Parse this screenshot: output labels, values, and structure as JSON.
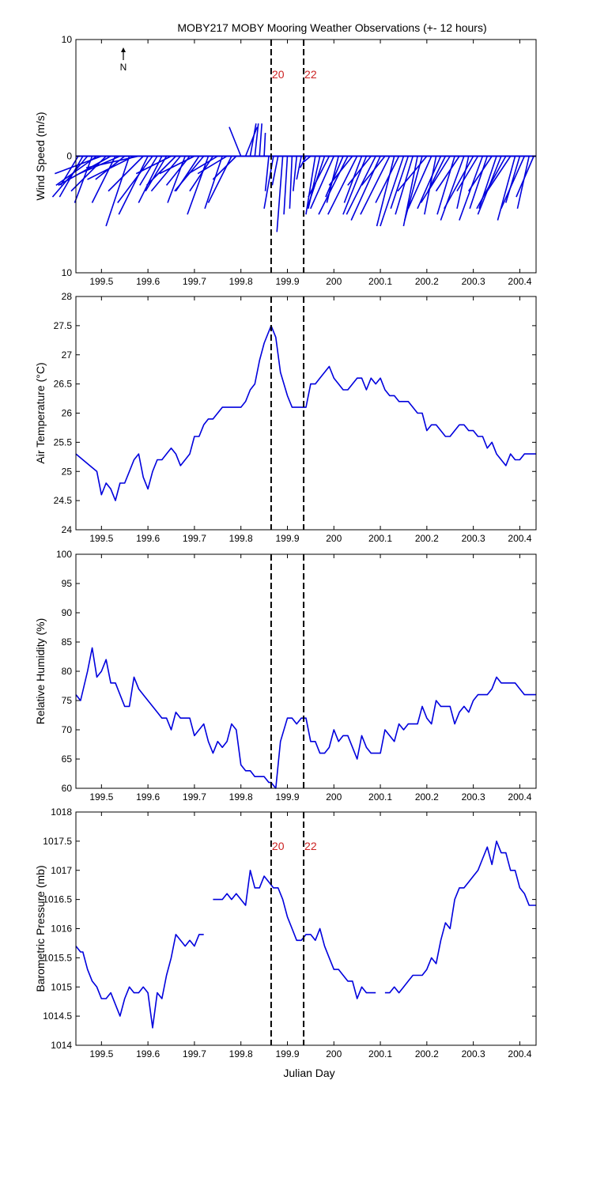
{
  "title": "MOBY217 MOBY Mooring Weather Observations (+- 12 hours)",
  "xlabel": "Julian Day",
  "compass_label": "N",
  "colors": {
    "series": "#0000dd",
    "axes": "#000000",
    "annotation": "#cc2222",
    "marker_line": "#000000"
  },
  "markers": [
    {
      "x": 199.865,
      "label": "20"
    },
    {
      "x": 199.935,
      "label": "22"
    }
  ],
  "xlim": [
    199.445,
    200.435
  ],
  "xticks": [
    199.5,
    199.6,
    199.7,
    199.8,
    199.9,
    200,
    200.1,
    200.2,
    200.3,
    200.4
  ],
  "xtick_labels": [
    "199.5",
    "199.6",
    "199.7",
    "199.8",
    "199.9",
    "200",
    "200.1",
    "200.2",
    "200.3",
    "200.4"
  ],
  "chart_data": [
    {
      "type": "line",
      "subtype": "wind-stick",
      "ylabel": "Wind Speed (m/s)",
      "ylim": [
        -10,
        10
      ],
      "yticks": [
        10,
        0,
        -10
      ],
      "ytick_labels": [
        "10",
        "0",
        "10"
      ],
      "stick_origin_y": 0,
      "x": [
        199.45,
        199.46,
        199.47,
        199.48,
        199.49,
        199.5,
        199.51,
        199.52,
        199.53,
        199.54,
        199.55,
        199.56,
        199.57,
        199.58,
        199.59,
        199.6,
        199.61,
        199.62,
        199.63,
        199.64,
        199.65,
        199.66,
        199.67,
        199.68,
        199.69,
        199.7,
        199.71,
        199.72,
        199.73,
        199.74,
        199.75,
        199.76,
        199.77,
        199.78,
        199.79,
        199.8,
        199.81,
        199.82,
        199.83,
        199.84,
        199.85,
        199.86,
        199.87,
        199.88,
        199.89,
        199.9,
        199.91,
        199.92,
        199.93,
        199.94,
        199.95,
        199.96,
        199.97,
        199.98,
        199.99,
        200.0,
        200.01,
        200.02,
        200.03,
        200.04,
        200.05,
        200.06,
        200.07,
        200.08,
        200.09,
        200.1,
        200.11,
        200.12,
        200.13,
        200.14,
        200.15,
        200.16,
        200.17,
        200.18,
        200.19,
        200.2,
        200.21,
        200.22,
        200.23,
        200.24,
        200.25,
        200.26,
        200.27,
        200.28,
        200.29,
        200.3,
        200.31,
        200.32,
        200.33,
        200.34,
        200.35,
        200.36,
        200.37,
        200.38,
        200.39,
        200.4,
        200.41,
        200.42,
        200.43
      ],
      "u": [
        -1.5,
        -2.0,
        -3.0,
        -1.5,
        -3.5,
        -4.0,
        -3.0,
        -4.5,
        -2.0,
        -3.5,
        -2.5,
        -2.0,
        -4.0,
        -4.5,
        -3.0,
        -2.5,
        -3.0,
        -1.5,
        -2.0,
        -1.8,
        -3.0,
        -2.5,
        -2.5,
        -1.5,
        -2.0,
        -3.0,
        -2.0,
        -2.5,
        -1.8,
        -2.0,
        -2.5,
        -1.5,
        -2.5,
        -2.0,
        -2.0,
        -1.0,
        1.0,
        0.5,
        0.3,
        0.2,
        0.1,
        -0.3,
        -0.8,
        -0.5,
        -0.5,
        -0.3,
        -0.2,
        -0.3,
        -0.4,
        -0.5,
        -0.6,
        -0.8,
        -1.0,
        -1.5,
        -1.8,
        -2.0,
        -1.0,
        -1.5,
        -2.5,
        -2.0,
        -2.5,
        -1.5,
        -2.0,
        -2.0,
        -2.5,
        -2.5,
        -2.0,
        -2.5,
        -1.5,
        -2.0,
        -2.0,
        -1.5,
        -1.5,
        -1.2,
        -1.5,
        -2.5,
        -2.0,
        -1.0,
        -2.0,
        -1.5,
        -2.5,
        -1.5,
        -2.0,
        -2.0,
        -1.0,
        -2.5,
        -1.8,
        -2.0,
        -1.5,
        -2.0,
        -1.5,
        -2.0,
        -2.5,
        -2.0,
        -1.5,
        -1.2,
        -2.0,
        -1.0,
        -1.5
      ],
      "v": [
        -2.5,
        -3.5,
        -3.5,
        -4.0,
        -2.5,
        -1.5,
        -3.0,
        -2.5,
        -4.0,
        -1.5,
        -2.0,
        -6.0,
        -2.0,
        -1.0,
        -3.0,
        -5.0,
        -4.0,
        -2.5,
        -4.0,
        -3.0,
        -1.5,
        -2.5,
        -3.0,
        -4.0,
        -2.5,
        -1.5,
        -3.0,
        -3.0,
        -5.0,
        -3.0,
        -1.5,
        -4.5,
        -1.5,
        -4.0,
        -2.0,
        2.5,
        2.5,
        2.8,
        2.8,
        2.8,
        2.0,
        -3.0,
        -4.5,
        -2.5,
        -6.5,
        -5.0,
        -4.5,
        -3.0,
        -2.0,
        -1.0,
        -0.5,
        -5.0,
        -4.5,
        -4.5,
        -3.5,
        -4.5,
        -4.0,
        -3.5,
        -5.0,
        -2.5,
        -5.0,
        -4.0,
        -5.0,
        -2.5,
        -5.0,
        -5.5,
        -2.5,
        -5.0,
        -6.0,
        -4.0,
        -6.0,
        -4.5,
        -5.0,
        -6.0,
        -5.5,
        -3.0,
        -4.5,
        -5.0,
        -4.5,
        -3.0,
        -4.0,
        -5.0,
        -3.0,
        -5.5,
        -4.5,
        -4.5,
        -3.0,
        -5.5,
        -4.5,
        -3.0,
        -4.5,
        -5.0,
        -4.5,
        -3.0,
        -5.5,
        -4.0,
        -4.5,
        -4.5,
        -3.5
      ]
    },
    {
      "type": "line",
      "ylabel": "Air Temperature (°C)",
      "ylim": [
        24,
        28
      ],
      "yticks": [
        28,
        27.5,
        27,
        26.5,
        26,
        25.5,
        25,
        24.5,
        24
      ],
      "ytick_labels": [
        "28",
        "27.5",
        "27",
        "26.5",
        "26",
        "25.5",
        "25",
        "24.5",
        "24"
      ],
      "series": [
        {
          "x": [
            199.445,
            199.46,
            199.475,
            199.49,
            199.5,
            199.51,
            199.52,
            199.53,
            199.54,
            199.55,
            199.56,
            199.57,
            199.58,
            199.59,
            199.6,
            199.61,
            199.62,
            199.63,
            199.64,
            199.65,
            199.66,
            199.67,
            199.68,
            199.69,
            199.7,
            199.71,
            199.72,
            199.73,
            199.74,
            199.75,
            199.76,
            199.77,
            199.78,
            199.79,
            199.8,
            199.81,
            199.82,
            199.83,
            199.84,
            199.85,
            199.865,
            199.875,
            199.885,
            199.9,
            199.91,
            199.92,
            199.93,
            199.94,
            199.95,
            199.96,
            199.97,
            199.98,
            199.99,
            200.0,
            200.01,
            200.02,
            200.03,
            200.04,
            200.05,
            200.06,
            200.07,
            200.08,
            200.09,
            200.1,
            200.11,
            200.12,
            200.13,
            200.14,
            200.15,
            200.16,
            200.17,
            200.18,
            200.19,
            200.2,
            200.21,
            200.22,
            200.23,
            200.24,
            200.25,
            200.26,
            200.27,
            200.28,
            200.29,
            200.3,
            200.31,
            200.32,
            200.33,
            200.34,
            200.35,
            200.36,
            200.37,
            200.38,
            200.39,
            200.4,
            200.41,
            200.42,
            200.43,
            200.435
          ],
          "y": [
            25.3,
            25.2,
            25.1,
            25.0,
            24.6,
            24.8,
            24.7,
            24.5,
            24.8,
            24.8,
            25.0,
            25.2,
            25.3,
            24.9,
            24.7,
            25.0,
            25.2,
            25.2,
            25.3,
            25.4,
            25.3,
            25.1,
            25.2,
            25.3,
            25.6,
            25.6,
            25.8,
            25.9,
            25.9,
            26.0,
            26.1,
            26.1,
            26.1,
            26.1,
            26.1,
            26.2,
            26.4,
            26.5,
            26.9,
            27.2,
            27.5,
            27.3,
            26.7,
            26.3,
            26.1,
            26.1,
            26.1,
            26.1,
            26.5,
            26.5,
            26.6,
            26.7,
            26.8,
            26.6,
            26.5,
            26.4,
            26.4,
            26.5,
            26.6,
            26.6,
            26.4,
            26.6,
            26.5,
            26.6,
            26.4,
            26.3,
            26.3,
            26.2,
            26.2,
            26.2,
            26.1,
            26.0,
            26.0,
            25.7,
            25.8,
            25.8,
            25.7,
            25.6,
            25.6,
            25.7,
            25.8,
            25.8,
            25.7,
            25.7,
            25.6,
            25.6,
            25.4,
            25.5,
            25.3,
            25.2,
            25.1,
            25.3,
            25.2,
            25.2,
            25.3,
            25.3,
            25.3,
            25.3
          ]
        }
      ]
    },
    {
      "type": "line",
      "ylabel": "Relative Humidity (%)",
      "ylim": [
        60,
        100
      ],
      "yticks": [
        100,
        95,
        90,
        85,
        80,
        75,
        70,
        65,
        60
      ],
      "ytick_labels": [
        "100",
        "95",
        "90",
        "85",
        "80",
        "75",
        "70",
        "65",
        "60"
      ],
      "series": [
        {
          "x": [
            199.445,
            199.455,
            199.47,
            199.48,
            199.49,
            199.5,
            199.51,
            199.52,
            199.53,
            199.54,
            199.55,
            199.56,
            199.57,
            199.58,
            199.59,
            199.6,
            199.61,
            199.62,
            199.63,
            199.64,
            199.65,
            199.66,
            199.67,
            199.68,
            199.69,
            199.7,
            199.71,
            199.72,
            199.73,
            199.74,
            199.75,
            199.76,
            199.77,
            199.78,
            199.79,
            199.8,
            199.81,
            199.82,
            199.83,
            199.84,
            199.85,
            199.86,
            199.865,
            199.875,
            199.885,
            199.9,
            199.91,
            199.92,
            199.93,
            199.94,
            199.95,
            199.96,
            199.97,
            199.98,
            199.99,
            200.0,
            200.01,
            200.02,
            200.03,
            200.04,
            200.05,
            200.06,
            200.07,
            200.08,
            200.09,
            200.1,
            200.11,
            200.12,
            200.13,
            200.14,
            200.15,
            200.16,
            200.17,
            200.18,
            200.19,
            200.2,
            200.21,
            200.22,
            200.23,
            200.24,
            200.25,
            200.26,
            200.27,
            200.28,
            200.29,
            200.3,
            200.31,
            200.32,
            200.33,
            200.34,
            200.35,
            200.36,
            200.37,
            200.38,
            200.39,
            200.4,
            200.41,
            200.42,
            200.43,
            200.435
          ],
          "y": [
            76,
            75,
            80,
            84,
            79,
            80,
            82,
            78,
            78,
            76,
            74,
            74,
            79,
            77,
            76,
            75,
            74,
            73,
            72,
            72,
            70,
            73,
            72,
            72,
            72,
            69,
            70,
            71,
            68,
            66,
            68,
            67,
            68,
            71,
            70,
            64,
            63,
            63,
            62,
            62,
            62,
            61,
            61,
            60,
            68,
            72,
            72,
            71,
            72,
            72,
            68,
            68,
            66,
            66,
            67,
            70,
            68,
            69,
            69,
            67,
            65,
            69,
            67,
            66,
            66,
            66,
            70,
            69,
            68,
            71,
            70,
            71,
            71,
            71,
            74,
            72,
            71,
            75,
            74,
            74,
            74,
            71,
            73,
            74,
            73,
            75,
            76,
            76,
            76,
            77,
            79,
            78,
            78,
            78,
            78,
            77,
            76,
            76,
            76,
            76
          ]
        }
      ]
    },
    {
      "type": "line",
      "ylabel": "Barometric Pressure (mb)",
      "ylim": [
        1014,
        1018
      ],
      "yticks": [
        1018,
        1017.5,
        1017,
        1016.5,
        1016,
        1015.5,
        1015,
        1014.5,
        1014
      ],
      "ytick_labels": [
        "1018",
        "1017.5",
        "1017",
        "1016.5",
        "1016",
        "1015.5",
        "1015",
        "1014.5",
        "1014"
      ],
      "series": [
        {
          "name": "",
          "segments": [
            {
              "x": [
                199.445,
                199.455,
                199.46,
                199.47,
                199.48,
                199.49,
                199.5,
                199.51,
                199.52,
                199.53,
                199.54,
                199.55,
                199.56,
                199.57,
                199.58,
                199.59,
                199.6,
                199.61,
                199.62,
                199.63,
                199.64,
                199.65,
                199.66,
                199.67,
                199.68,
                199.69,
                199.7,
                199.71,
                199.72
              ],
              "y": [
                1015.7,
                1015.6,
                1015.6,
                1015.3,
                1015.1,
                1015.0,
                1014.8,
                1014.8,
                1014.9,
                1014.7,
                1014.5,
                1014.8,
                1015.0,
                1014.9,
                1014.9,
                1015.0,
                1014.9,
                1014.3,
                1014.9,
                1014.8,
                1015.2,
                1015.5,
                1015.9,
                1015.8,
                1015.7,
                1015.8,
                1015.7,
                1015.9,
                1015.9
              ]
            },
            {
              "x": [
                199.74,
                199.75,
                199.76,
                199.77,
                199.78,
                199.79,
                199.8,
                199.81,
                199.82,
                199.83,
                199.84,
                199.85,
                199.86,
                199.87,
                199.88,
                199.89,
                199.9,
                199.91,
                199.92,
                199.93,
                199.94,
                199.95,
                199.96,
                199.97,
                199.98,
                199.99,
                200.0,
                200.01,
                200.02,
                200.03,
                200.04,
                200.05,
                200.06,
                200.07,
                200.08,
                200.09
              ],
              "y": [
                1016.5,
                1016.5,
                1016.5,
                1016.6,
                1016.5,
                1016.6,
                1016.5,
                1016.4,
                1017.0,
                1016.7,
                1016.7,
                1016.9,
                1016.8,
                1016.7,
                1016.7,
                1016.5,
                1016.2,
                1016.0,
                1015.8,
                1015.8,
                1015.9,
                1015.9,
                1015.8,
                1016.0,
                1015.7,
                1015.5,
                1015.3,
                1015.3,
                1015.2,
                1015.1,
                1015.1,
                1014.8,
                1015.0,
                1014.9,
                1014.9,
                1014.9
              ]
            },
            {
              "x": [
                200.11,
                200.12,
                200.13,
                200.14,
                200.15,
                200.16,
                200.17,
                200.18,
                200.19,
                200.2,
                200.21,
                200.22,
                200.23,
                200.24,
                200.25,
                200.26,
                200.27,
                200.28,
                200.29,
                200.3,
                200.31,
                200.32,
                200.33,
                200.34,
                200.35,
                200.36,
                200.37,
                200.38,
                200.39,
                200.4,
                200.41,
                200.42,
                200.43,
                200.435
              ],
              "y": [
                1014.9,
                1014.9,
                1015.0,
                1014.9,
                1015.0,
                1015.1,
                1015.2,
                1015.2,
                1015.2,
                1015.3,
                1015.5,
                1015.4,
                1015.8,
                1016.1,
                1016.0,
                1016.5,
                1016.7,
                1016.7,
                1016.8,
                1016.9,
                1017.0,
                1017.2,
                1017.4,
                1017.1,
                1017.5,
                1017.3,
                1017.3,
                1017.0,
                1017.0,
                1016.7,
                1016.6,
                1016.4,
                1016.4,
                1016.4
              ]
            }
          ]
        }
      ]
    }
  ]
}
